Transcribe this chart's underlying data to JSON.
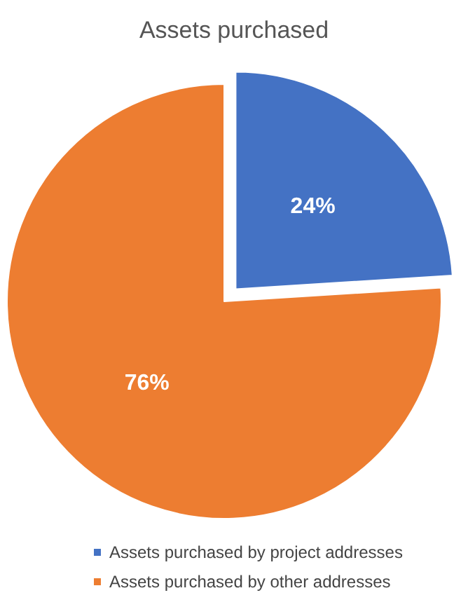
{
  "chart_data": {
    "type": "pie",
    "title": "Assets purchased",
    "categories": [
      "Assets purchased by project addresses",
      "Assets purchased by other addresses"
    ],
    "values": [
      24,
      76
    ],
    "colors": [
      "#4472c4",
      "#ed7d31"
    ],
    "value_labels": [
      "24%",
      "76%"
    ],
    "legend": "bottom"
  }
}
